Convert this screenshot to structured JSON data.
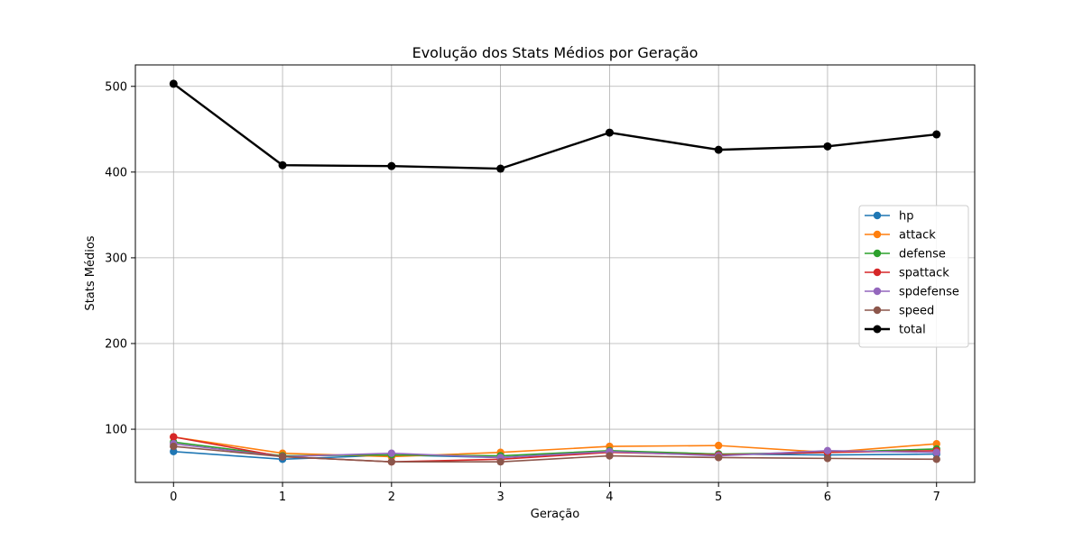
{
  "chart_data": {
    "type": "line",
    "title": "Evolução dos Stats Médios por Geração",
    "xlabel": "Geração",
    "ylabel": "Stats Médios",
    "x": [
      0,
      1,
      2,
      3,
      4,
      5,
      6,
      7
    ],
    "xlim": [
      -0.35,
      7.35
    ],
    "ylim": [
      38,
      525
    ],
    "yticks": [
      100,
      200,
      300,
      400,
      500
    ],
    "grid": true,
    "legend_position": "center-right",
    "series": [
      {
        "name": "hp",
        "color": "#1f77b4",
        "values": [
          74,
          65,
          70,
          67,
          74,
          71,
          70,
          71
        ],
        "bold": false
      },
      {
        "name": "attack",
        "color": "#ff7f0e",
        "values": [
          91,
          72,
          68,
          73,
          80,
          81,
          73,
          83
        ],
        "bold": false
      },
      {
        "name": "defense",
        "color": "#2ca02c",
        "values": [
          85,
          69,
          70,
          69,
          75,
          71,
          73,
          77
        ],
        "bold": false
      },
      {
        "name": "spattack",
        "color": "#d62728",
        "values": [
          91,
          68,
          62,
          65,
          73,
          70,
          73,
          75
        ],
        "bold": false
      },
      {
        "name": "spdefense",
        "color": "#9467bd",
        "values": [
          83,
          68,
          72,
          67,
          74,
          69,
          75,
          73
        ],
        "bold": false
      },
      {
        "name": "speed",
        "color": "#8c564b",
        "values": [
          80,
          68,
          62,
          62,
          69,
          67,
          66,
          65
        ],
        "bold": false
      },
      {
        "name": "total",
        "color": "#000000",
        "values": [
          503,
          408,
          407,
          404,
          446,
          426,
          430,
          444
        ],
        "bold": true
      }
    ]
  }
}
